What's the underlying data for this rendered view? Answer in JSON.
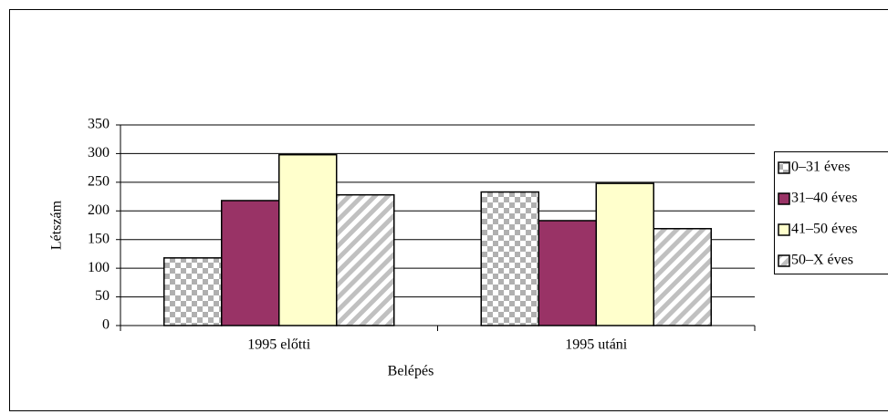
{
  "chart_data": {
    "type": "bar",
    "x_label": "Belépés",
    "y_label": "Létszám",
    "categories": [
      "1995 előtti",
      "1995 utáni"
    ],
    "series": [
      {
        "name": "0–31 éves",
        "color": "#c0c0c0",
        "pattern": "checker",
        "values": [
          118,
          233
        ]
      },
      {
        "name": "31–40 éves",
        "color": "#993366",
        "values": [
          218,
          183
        ]
      },
      {
        "name": "41–50 éves",
        "color": "#ffffcc",
        "values": [
          298,
          248
        ]
      },
      {
        "name": "50–X éves",
        "color": "#c0c0c0",
        "pattern": "diagonal",
        "values": [
          228,
          169
        ]
      }
    ],
    "ylim": [
      0,
      350
    ],
    "yticks": [
      0,
      50,
      100,
      150,
      200,
      250,
      300,
      350
    ],
    "grid": true,
    "legend": "right"
  }
}
